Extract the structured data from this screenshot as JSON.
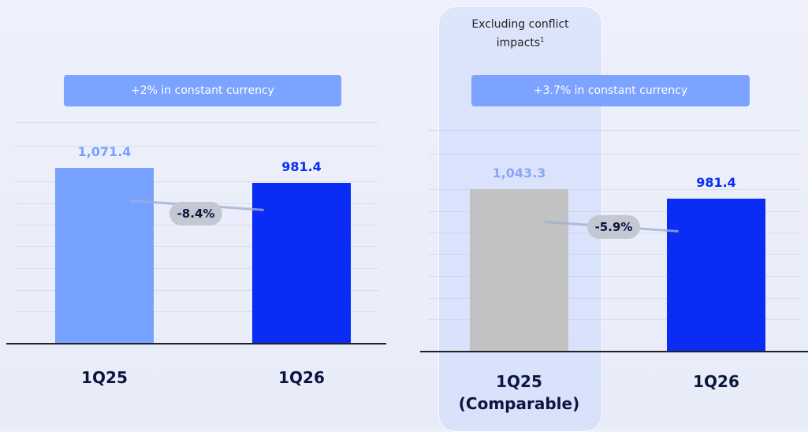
{
  "chart_data": [
    {
      "type": "bar",
      "banner": "+2% in constant currency",
      "categories": [
        "1Q25",
        "1Q26"
      ],
      "values": [
        1071.4,
        981.4
      ],
      "value_labels": [
        "1,071.4",
        "981.4"
      ],
      "colors": [
        "#76a1ff",
        "#0a2cf5"
      ],
      "label_colors": [
        "#76a1ff",
        "#0a2cf5"
      ],
      "change_label": "-8.4%"
    },
    {
      "type": "bar",
      "note": "Excluding conflict impacts",
      "note_ref": "1",
      "banner": "+3.7% in constant currency",
      "categories": [
        "1Q25 (Comparable)",
        "1Q26"
      ],
      "values": [
        1043.3,
        981.4
      ],
      "value_labels": [
        "1,043.3",
        "981.4"
      ],
      "colors": [
        "#c2c2c4",
        "#0a2cf5"
      ],
      "label_colors": [
        "#8ba6f2",
        "#0a2cf5"
      ],
      "change_label": "-5.9%"
    }
  ]
}
